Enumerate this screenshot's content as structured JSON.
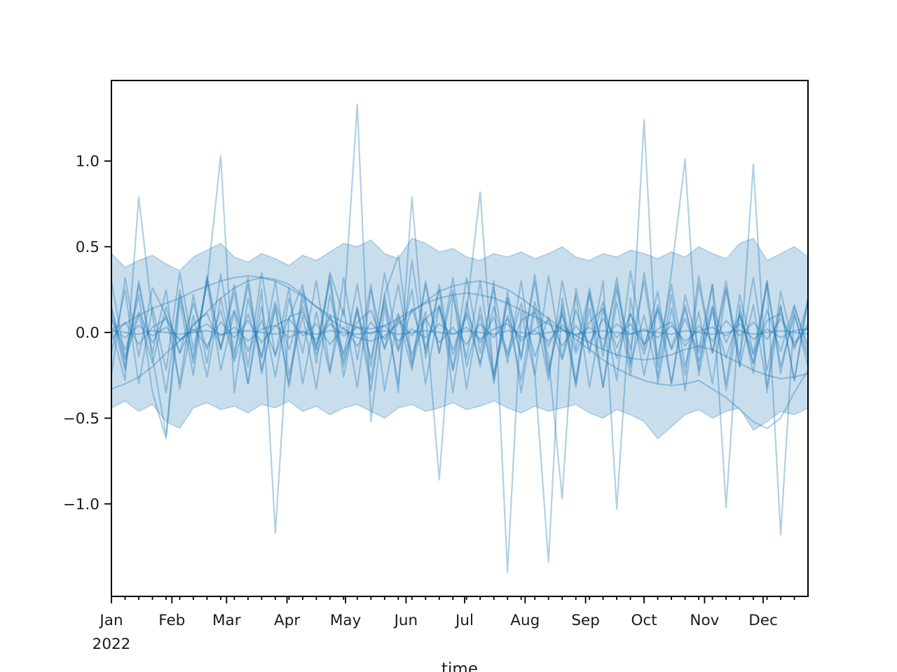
{
  "figure": {
    "background": "#ffffff"
  },
  "axes": {
    "xlabel": "time",
    "x_tick_labels": [
      "Jan",
      "Feb",
      "Mar",
      "Apr",
      "May",
      "Jun",
      "Jul",
      "Aug",
      "Sep",
      "Oct",
      "Nov",
      "Dec"
    ],
    "x_year_label": "2022",
    "y_tick_labels": [
      "1.0",
      "0.5",
      "0.0",
      "−0.5",
      "−1.0"
    ],
    "y_tick_values": [
      1.0,
      0.5,
      0.0,
      -0.5,
      -1.0
    ],
    "spine_color": "#000000",
    "tick_color": "#000000",
    "label_color": "#1a1a1a"
  },
  "chart_data": {
    "type": "line",
    "title": "",
    "xlabel": "time",
    "ylabel": "",
    "x_unit": "weekly samples starting Jan 2022",
    "n_points": 52,
    "week_step_days": 7,
    "xlim_days": [
      0,
      357
    ],
    "ylim": [
      -1.54,
      1.47
    ],
    "month_start_days": [
      0,
      31,
      59,
      90,
      120,
      151,
      181,
      212,
      243,
      273,
      304,
      334
    ],
    "grid": false,
    "legend": "none",
    "line_color": "#1f77b4",
    "line_opacity": 0.35,
    "band": {
      "name": "confidence-band",
      "fill_color": "#1f77b4",
      "fill_opacity": 0.24,
      "edge_opacity": 0.28,
      "upper": [
        0.46,
        0.38,
        0.42,
        0.45,
        0.4,
        0.36,
        0.44,
        0.48,
        0.52,
        0.44,
        0.41,
        0.46,
        0.43,
        0.39,
        0.45,
        0.42,
        0.47,
        0.52,
        0.5,
        0.54,
        0.46,
        0.43,
        0.55,
        0.52,
        0.47,
        0.49,
        0.44,
        0.42,
        0.46,
        0.44,
        0.47,
        0.43,
        0.46,
        0.5,
        0.44,
        0.42,
        0.46,
        0.44,
        0.48,
        0.46,
        0.43,
        0.47,
        0.44,
        0.5,
        0.46,
        0.43,
        0.52,
        0.55,
        0.42,
        0.46,
        0.5,
        0.44
      ],
      "lower": [
        -0.44,
        -0.4,
        -0.46,
        -0.42,
        -0.52,
        -0.56,
        -0.44,
        -0.41,
        -0.45,
        -0.43,
        -0.47,
        -0.42,
        -0.44,
        -0.4,
        -0.46,
        -0.43,
        -0.48,
        -0.44,
        -0.42,
        -0.46,
        -0.5,
        -0.44,
        -0.42,
        -0.46,
        -0.44,
        -0.41,
        -0.45,
        -0.43,
        -0.4,
        -0.44,
        -0.47,
        -0.43,
        -0.46,
        -0.44,
        -0.42,
        -0.47,
        -0.5,
        -0.45,
        -0.48,
        -0.52,
        -0.62,
        -0.55,
        -0.48,
        -0.45,
        -0.5,
        -0.46,
        -0.44,
        -0.57,
        -0.52,
        -0.46,
        -0.48,
        -0.44
      ]
    },
    "series": [
      {
        "name": "noisy-1",
        "values": [
          0.02,
          -0.28,
          0.79,
          0.1,
          -0.35,
          0.22,
          -0.15,
          0.3,
          -0.22,
          0.12,
          -0.3,
          0.25,
          -1.17,
          0.08,
          0.28,
          -0.18,
          0.35,
          0.1,
          1.33,
          -0.52,
          0.15,
          -0.3,
          0.42,
          -0.12,
          0.25,
          -0.35,
          0.18,
          -0.2,
          0.3,
          -1.4,
          0.12,
          -0.25,
          0.33,
          -0.15,
          0.22,
          -0.32,
          0.14,
          -0.28,
          0.36,
          -0.1,
          0.24,
          -0.3,
          0.16,
          -0.22,
          0.28,
          -0.34,
          0.12,
          -0.18,
          0.3,
          -0.24,
          0.15,
          -0.08
        ]
      },
      {
        "name": "noisy-2",
        "values": [
          -0.12,
          0.25,
          -0.3,
          0.15,
          -0.22,
          0.35,
          -0.1,
          0.28,
          1.03,
          -0.35,
          0.2,
          -0.15,
          0.3,
          -0.25,
          0.1,
          -0.33,
          0.22,
          -0.14,
          0.28,
          -0.2,
          0.35,
          -0.1,
          0.25,
          -0.3,
          0.15,
          -0.22,
          0.32,
          -0.12,
          0.26,
          -0.18,
          0.3,
          -0.24,
          -1.34,
          0.2,
          -0.28,
          0.14,
          -0.32,
          0.25,
          -0.1,
          0.3,
          -0.2,
          0.35,
          1.01,
          -0.25,
          0.15,
          -0.3,
          0.22,
          -0.12,
          0.28,
          -0.2,
          0.1,
          -0.15
        ]
      },
      {
        "name": "noisy-3",
        "values": [
          0.15,
          -0.2,
          0.3,
          -0.12,
          0.25,
          -0.33,
          0.1,
          -0.26,
          0.2,
          -0.15,
          0.32,
          -0.22,
          0.14,
          -0.3,
          0.25,
          -0.1,
          0.33,
          -0.2,
          0.15,
          -0.28,
          0.22,
          -0.35,
          0.79,
          -0.15,
          0.28,
          -0.22,
          0.12,
          0.82,
          -0.3,
          0.2,
          -0.14,
          0.3,
          -0.25,
          0.16,
          -0.32,
          0.22,
          -0.1,
          0.28,
          -0.2,
          1.24,
          -0.3,
          0.14,
          -0.25,
          0.33,
          -0.12,
          0.26,
          -0.2,
          0.98,
          -0.35,
          0.15,
          -0.28,
          0.2
        ]
      },
      {
        "name": "noisy-4",
        "values": [
          0.1,
          -0.22,
          0.28,
          -0.14,
          -0.6,
          0.25,
          -0.18,
          0.32,
          -0.1,
          0.24,
          -0.3,
          0.15,
          -0.26,
          0.2,
          -0.12,
          0.3,
          -0.22,
          0.14,
          -0.32,
          0.25,
          -0.1,
          0.28,
          -0.2,
          0.12,
          -0.86,
          0.22,
          -0.15,
          0.3,
          -0.24,
          0.1,
          -0.28,
          0.18,
          -0.14,
          -0.97,
          0.26,
          -0.12,
          0.3,
          -1.03,
          0.2,
          -0.25,
          0.14,
          -0.3,
          0.22,
          -0.1,
          0.28,
          -1.02,
          0.16,
          -0.24,
          0.3,
          -1.18,
          0.12,
          -0.2
        ]
      },
      {
        "name": "noisy-5",
        "values": [
          0.3,
          -0.15,
          0.22,
          -0.35,
          -0.62,
          0.18,
          -0.25,
          0.33,
          -0.1,
          0.28,
          -0.2,
          0.35,
          -0.14,
          0.26,
          -0.3,
          0.12,
          -0.24,
          0.32,
          -0.16,
          0.28,
          -0.34,
          0.1,
          -0.22,
          0.3,
          -0.12,
          0.25,
          -0.33,
          0.15,
          -0.26,
          0.2,
          -0.35,
          0.14,
          -0.28,
          0.3,
          -0.1,
          0.24,
          -0.32,
          0.18,
          -0.25,
          0.35,
          -0.15,
          0.28,
          -0.2,
          0.12,
          -0.3,
          0.25,
          -0.14,
          0.32,
          -0.22,
          0.16,
          -0.28,
          0.2
        ]
      },
      {
        "name": "noisy-6",
        "values": [
          -0.25,
          0.32,
          -0.14,
          0.26,
          0.1,
          -0.3,
          0.22,
          -0.18,
          0.34,
          -0.12,
          0.28,
          -0.24,
          0.16,
          -0.32,
          0.2,
          -0.1,
          0.3,
          -0.26,
          0.14,
          -0.34,
          0.22,
          0.45,
          -0.18,
          0.28,
          -0.12,
          0.32,
          -0.2,
          0.1,
          -0.28,
          0.24,
          -0.16,
          0.34,
          -0.22,
          0.12,
          -0.3,
          0.26,
          -0.14,
          0.32,
          -0.18,
          0.1,
          -0.26,
          0.22,
          -0.34,
          0.28,
          -0.12,
          0.3,
          -0.2,
          0.16,
          -0.32,
          0.24,
          -0.1,
          0.18
        ]
      },
      {
        "name": "smooth-1",
        "values": [
          -0.33,
          -0.3,
          -0.26,
          -0.2,
          -0.12,
          -0.05,
          0.04,
          0.12,
          0.2,
          0.26,
          0.3,
          0.32,
          0.31,
          0.28,
          0.22,
          0.15,
          0.08,
          0.02,
          -0.03,
          -0.05,
          -0.02,
          0.05,
          0.12,
          0.18,
          0.24,
          0.27,
          0.29,
          0.3,
          0.28,
          0.25,
          0.2,
          0.14,
          0.08,
          0.02,
          -0.04,
          -0.1,
          -0.16,
          -0.21,
          -0.25,
          -0.28,
          -0.3,
          -0.31,
          -0.3,
          -0.28,
          -0.33,
          -0.38,
          -0.45,
          -0.52,
          -0.56,
          -0.5,
          -0.35,
          -0.22
        ]
      },
      {
        "name": "smooth-2",
        "values": [
          0.02,
          0.05,
          0.1,
          0.14,
          0.17,
          0.2,
          0.24,
          0.27,
          0.3,
          0.32,
          0.33,
          0.32,
          0.3,
          0.26,
          0.21,
          0.15,
          0.1,
          0.06,
          0.03,
          0.02,
          0.04,
          0.08,
          0.13,
          0.17,
          0.2,
          0.22,
          0.23,
          0.22,
          0.2,
          0.17,
          0.13,
          0.09,
          0.05,
          0.02,
          -0.02,
          -0.06,
          -0.1,
          -0.13,
          -0.15,
          -0.16,
          -0.15,
          -0.13,
          -0.1,
          -0.08,
          -0.1,
          -0.14,
          -0.18,
          -0.22,
          -0.25,
          -0.27,
          -0.26,
          -0.24
        ]
      },
      {
        "name": "near-zero-1",
        "values": [
          0.02,
          -0.03,
          0.04,
          -0.02,
          0.03,
          -0.04,
          0.01,
          0.05,
          -0.02,
          0.03,
          -0.05,
          0.02,
          0.04,
          -0.03,
          0.01,
          -0.04,
          0.05,
          -0.02,
          0.03,
          -0.01,
          0.04,
          -0.05,
          0.02,
          -0.03,
          0.05,
          -0.01,
          0.03,
          -0.04,
          0.02,
          0.05,
          -0.03,
          0.01,
          -0.05,
          0.04,
          -0.02,
          0.03,
          -0.04,
          0.05,
          -0.01,
          0.02,
          -0.03,
          0.04,
          -0.05,
          0.01,
          0.03,
          -0.02,
          0.05,
          -0.04,
          0.02,
          -0.03,
          0.01,
          0.02
        ]
      },
      {
        "name": "near-zero-2",
        "values": [
          -0.04,
          0.06,
          -0.07,
          0.03,
          0.08,
          -0.05,
          0.02,
          -0.08,
          0.06,
          -0.03,
          0.07,
          -0.06,
          0.04,
          0.08,
          -0.02,
          0.05,
          -0.07,
          0.03,
          -0.08,
          0.06,
          -0.04,
          0.07,
          -0.02,
          0.08,
          -0.06,
          0.03,
          -0.07,
          0.05,
          -0.03,
          0.08,
          -0.05,
          0.02,
          0.07,
          -0.08,
          0.04,
          -0.06,
          0.08,
          -0.03,
          0.05,
          -0.07,
          0.02,
          0.06,
          -0.08,
          0.04,
          -0.05,
          0.07,
          -0.02,
          0.06,
          -0.04,
          0.08,
          -0.06,
          0.03
        ]
      },
      {
        "name": "near-zero-3",
        "values": [
          0.08,
          -0.1,
          0.12,
          -0.06,
          0.1,
          -0.12,
          0.05,
          0.11,
          -0.08,
          0.13,
          -0.11,
          0.07,
          -0.13,
          0.09,
          0.12,
          -0.07,
          0.1,
          -0.12,
          0.06,
          0.13,
          -0.09,
          0.11,
          -0.13,
          0.08,
          0.15,
          -0.1,
          0.12,
          -0.06,
          0.09,
          -0.14,
          0.07,
          0.12,
          -0.08,
          0.1,
          -0.12,
          0.06,
          0.14,
          -0.09,
          0.11,
          -0.07,
          0.13,
          -0.1,
          0.08,
          -0.12,
          0.15,
          -0.06,
          0.1,
          -0.13,
          0.07,
          0.11,
          -0.08,
          0.05
        ]
      },
      {
        "name": "near-zero-4",
        "values": [
          0.01,
          0.0,
          -0.01,
          0.01,
          0.0,
          -0.01,
          0.0,
          0.01,
          -0.01,
          0.0,
          0.01,
          0.0,
          -0.01,
          0.01,
          0.0,
          -0.01,
          0.01,
          0.0,
          -0.01,
          0.0,
          0.01,
          -0.01,
          0.0,
          0.01,
          0.0,
          -0.01,
          0.01,
          0.0,
          -0.01,
          0.01,
          0.0,
          -0.01,
          0.0,
          0.01,
          -0.01,
          0.0,
          0.01,
          0.0,
          -0.01,
          0.01,
          0.0,
          -0.01,
          0.01,
          0.0,
          -0.01,
          0.0,
          0.01,
          -0.01,
          0.0,
          0.01,
          0.0,
          -0.01
        ]
      },
      {
        "name": "near-zero-5",
        "values": [
          0.14,
          -0.16,
          0.1,
          -0.18,
          0.15,
          -0.12,
          0.17,
          -0.1,
          0.13,
          -0.17,
          0.11,
          -0.14,
          0.18,
          -0.1,
          0.15,
          -0.13,
          0.09,
          -0.17,
          0.12,
          -0.15,
          0.18,
          -0.11,
          0.14,
          -0.09,
          0.16,
          -0.13,
          0.1,
          -0.18,
          0.15,
          -0.12,
          0.17,
          -0.14,
          0.09,
          -0.16,
          0.13,
          -0.1,
          0.18,
          -0.15,
          0.11,
          -0.13,
          0.16,
          -0.09,
          0.14,
          -0.17,
          0.12,
          -0.15,
          0.1,
          -0.18,
          0.13,
          -0.11,
          0.16,
          -0.12
        ]
      }
    ]
  }
}
